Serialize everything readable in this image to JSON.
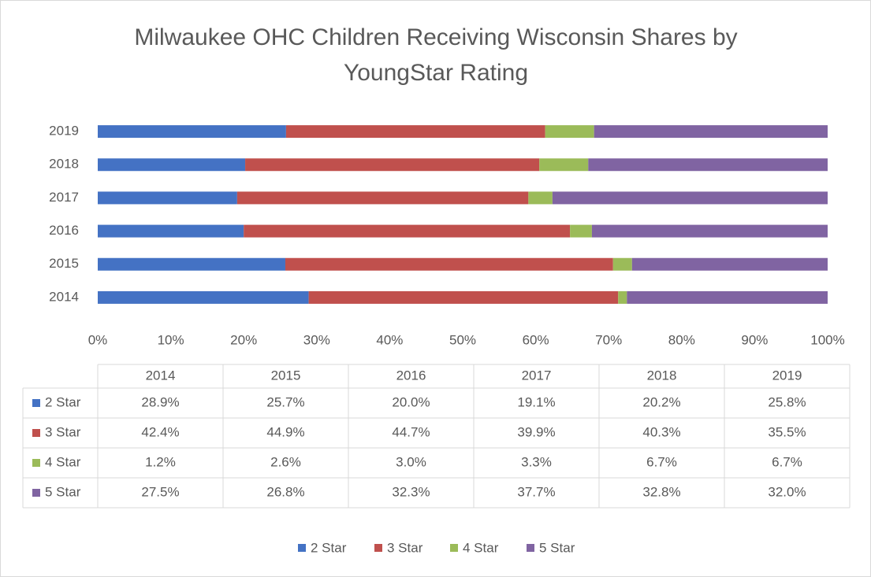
{
  "chart_data": {
    "type": "bar",
    "orientation": "horizontal",
    "stacked": true,
    "title": "Milwaukee OHC Children Receiving Wisconsin Shares by YoungStar Rating",
    "categories": [
      "2014",
      "2015",
      "2016",
      "2017",
      "2018",
      "2019"
    ],
    "series": [
      {
        "name": "2 Star",
        "color": "#4472c4",
        "values": [
          28.9,
          25.7,
          20.0,
          19.1,
          20.2,
          25.8
        ],
        "value_labels": [
          "28.9%",
          "25.7%",
          "20.0%",
          "19.1%",
          "20.2%",
          "25.8%"
        ]
      },
      {
        "name": "3 Star",
        "color": "#c0504d",
        "values": [
          42.4,
          44.9,
          44.7,
          39.9,
          40.3,
          35.5
        ],
        "value_labels": [
          "42.4%",
          "44.9%",
          "44.7%",
          "39.9%",
          "40.3%",
          "35.5%"
        ]
      },
      {
        "name": "4 Star",
        "color": "#9bbb59",
        "values": [
          1.2,
          2.6,
          3.0,
          3.3,
          6.7,
          6.7
        ],
        "value_labels": [
          "1.2%",
          "2.6%",
          "3.0%",
          "3.3%",
          "6.7%",
          "6.7%"
        ]
      },
      {
        "name": "5 Star",
        "color": "#8064a2",
        "values": [
          27.5,
          26.8,
          32.3,
          37.7,
          32.8,
          32.0
        ],
        "value_labels": [
          "27.5%",
          "26.8%",
          "32.3%",
          "37.7%",
          "32.8%",
          "32.0%"
        ]
      }
    ],
    "xlim": [
      0,
      100
    ],
    "xticks": [
      {
        "value": 0,
        "label": "0%"
      },
      {
        "value": 10,
        "label": "10%"
      },
      {
        "value": 20,
        "label": "20%"
      },
      {
        "value": 30,
        "label": "30%"
      },
      {
        "value": 40,
        "label": "40%"
      },
      {
        "value": 50,
        "label": "50%"
      },
      {
        "value": 60,
        "label": "60%"
      },
      {
        "value": 70,
        "label": "70%"
      },
      {
        "value": 80,
        "label": "80%"
      },
      {
        "value": 90,
        "label": "90%"
      },
      {
        "value": 100,
        "label": "100%"
      }
    ],
    "grid": false,
    "legend": "bottom",
    "data_table": true
  }
}
